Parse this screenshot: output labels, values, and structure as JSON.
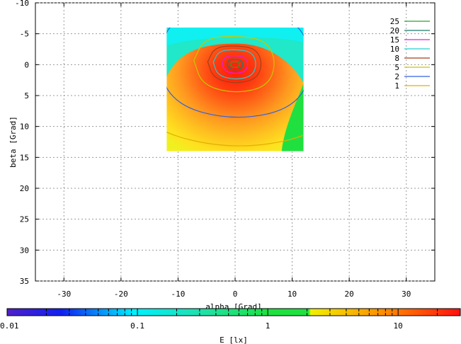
{
  "chart_data": {
    "type": "heatmap",
    "title": "",
    "xlabel": "alpha [Grad]",
    "ylabel": "beta [Grad]",
    "xlim": [
      -35,
      35
    ],
    "ylim": [
      35,
      -10
    ],
    "x_ticks": [
      "-30",
      "-20",
      "-10",
      "0",
      "10",
      "20",
      "30"
    ],
    "x_tick_values": [
      -30,
      -20,
      -10,
      0,
      10,
      20,
      30
    ],
    "y_ticks": [
      "-10",
      "-5",
      "0",
      "5",
      "10",
      "15",
      "20",
      "25",
      "30",
      "35"
    ],
    "y_tick_values": [
      -10,
      -5,
      0,
      5,
      10,
      15,
      20,
      25,
      30,
      35
    ],
    "grid": true,
    "data_extent": {
      "alpha": [
        -12,
        12
      ],
      "beta": [
        -6,
        14
      ]
    },
    "peak": {
      "alpha": 0,
      "beta": 0,
      "value": 25
    },
    "contour_levels": [
      {
        "label": "25",
        "value": 25,
        "color": "#2aa02a"
      },
      {
        "label": "20",
        "value": 20,
        "color": "#1f7a6a"
      },
      {
        "label": "15",
        "value": 15,
        "color": "#e020e0"
      },
      {
        "label": "10",
        "value": 10,
        "color": "#20d0d0"
      },
      {
        "label": "8",
        "value": 8,
        "color": "#a0401a"
      },
      {
        "label": "5",
        "value": 5,
        "color": "#c8c800"
      },
      {
        "label": "2",
        "value": 2,
        "color": "#3060e0"
      },
      {
        "label": "1",
        "value": 1,
        "color": "#e0b000"
      }
    ],
    "legend_position": "top-right",
    "colorbar": {
      "label": "E [lx]",
      "scale": "log",
      "range": [
        0.01,
        30
      ],
      "ticks": [
        "0.01",
        "0.1",
        "1",
        "10"
      ],
      "tick_values": [
        0.01,
        0.1,
        1,
        10
      ]
    }
  }
}
